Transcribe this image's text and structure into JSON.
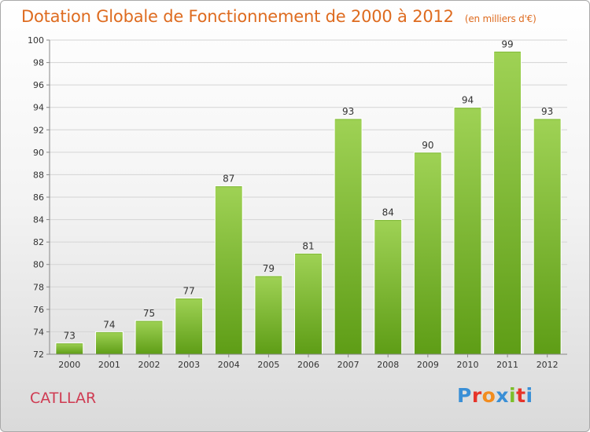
{
  "header": {
    "title": "Dotation Globale de Fonctionnement de 2000 à 2012",
    "subtitle": "(en milliers d'€)"
  },
  "footer": {
    "commune": "CATLLAR",
    "logo_letters": [
      {
        "ch": "P",
        "color": "#3a8fd6"
      },
      {
        "ch": "r",
        "color": "#e6342a"
      },
      {
        "ch": "o",
        "color": "#f28c1e"
      },
      {
        "ch": "x",
        "color": "#3a8fd6"
      },
      {
        "ch": "i",
        "color": "#7cbf2a"
      },
      {
        "ch": "t",
        "color": "#e6342a"
      },
      {
        "ch": "i",
        "color": "#3a8fd6"
      }
    ]
  },
  "chart_data": {
    "type": "bar",
    "title": "Dotation Globale de Fonctionnement de 2000 à 2012",
    "subtitle": "(en milliers d'€)",
    "xlabel": "",
    "ylabel": "",
    "categories": [
      "2000",
      "2001",
      "2002",
      "2003",
      "2004",
      "2005",
      "2006",
      "2007",
      "2008",
      "2009",
      "2010",
      "2011",
      "2012"
    ],
    "values": [
      73,
      74,
      75,
      77,
      87,
      79,
      81,
      93,
      84,
      90,
      94,
      99,
      93
    ],
    "ylim": [
      72,
      100
    ],
    "yticks": [
      72,
      74,
      76,
      78,
      80,
      82,
      84,
      86,
      88,
      90,
      92,
      94,
      96,
      98,
      100
    ],
    "grid": true,
    "colors": {
      "bar_light": "#9fd255",
      "bar_dark": "#5e9d16",
      "grid": "#d4d4d4",
      "axis": "#888888",
      "text": "#333333"
    }
  }
}
